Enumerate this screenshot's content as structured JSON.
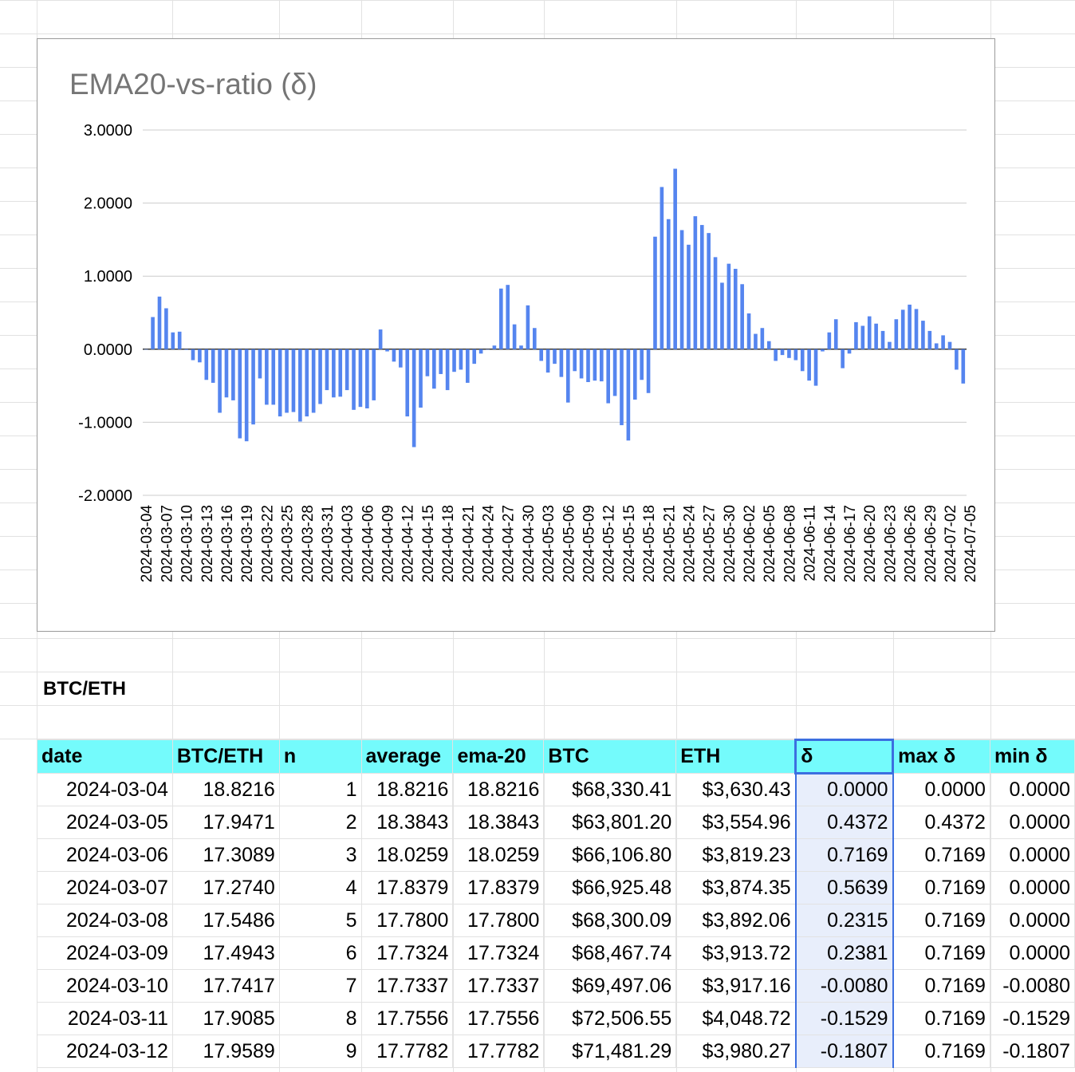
{
  "chart": {
    "title": "EMA20-vs-ratio (δ)",
    "bar_color": "#5585ef",
    "y_ticks": [
      "3.0000",
      "2.0000",
      "1.0000",
      "0.0000",
      "-1.0000",
      "-2.0000"
    ]
  },
  "chart_data": {
    "type": "bar",
    "title": "EMA20-vs-ratio (δ)",
    "xlabel": "",
    "ylabel": "",
    "ylim": [
      -2,
      3
    ],
    "grid": true,
    "x_tick_labels": [
      "2024-03-04",
      "2024-03-07",
      "2024-03-10",
      "2024-03-13",
      "2024-03-16",
      "2024-03-19",
      "2024-03-22",
      "2024-03-25",
      "2024-03-28",
      "2024-03-31",
      "2024-04-03",
      "2024-04-06",
      "2024-04-09",
      "2024-04-12",
      "2024-04-15",
      "2024-04-18",
      "2024-04-21",
      "2024-04-24",
      "2024-04-27",
      "2024-04-30",
      "2024-05-03",
      "2024-05-06",
      "2024-05-09",
      "2024-05-12",
      "2024-05-15",
      "2024-05-18",
      "2024-05-21",
      "2024-05-24",
      "2024-05-27",
      "2024-05-30",
      "2024-06-02",
      "2024-06-05",
      "2024-06-08",
      "2024-06-11",
      "2024-06-14",
      "2024-06-17",
      "2024-06-20",
      "2024-06-23",
      "2024-06-26",
      "2024-06-29",
      "2024-07-02",
      "2024-07-05"
    ],
    "start_date": "2024-03-04",
    "values": [
      0.0,
      0.44,
      0.72,
      0.56,
      0.23,
      0.24,
      -0.01,
      -0.15,
      -0.18,
      -0.42,
      -0.46,
      -0.87,
      -0.66,
      -0.7,
      -1.22,
      -1.26,
      -1.03,
      -0.4,
      -0.76,
      -0.76,
      -0.92,
      -0.87,
      -0.86,
      -0.99,
      -0.92,
      -0.87,
      -0.75,
      -0.56,
      -0.66,
      -0.65,
      -0.56,
      -0.83,
      -0.79,
      -0.81,
      -0.7,
      0.27,
      -0.03,
      -0.17,
      -0.25,
      -0.92,
      -1.34,
      -0.8,
      -0.37,
      -0.54,
      -0.34,
      -0.56,
      -0.31,
      -0.28,
      -0.46,
      -0.2,
      -0.06,
      0.0,
      0.05,
      0.83,
      0.88,
      0.34,
      0.05,
      0.6,
      0.29,
      -0.16,
      -0.32,
      -0.2,
      -0.38,
      -0.73,
      -0.3,
      -0.4,
      -0.45,
      -0.43,
      -0.44,
      -0.74,
      -0.64,
      -1.04,
      -1.25,
      -0.69,
      -0.42,
      -0.6,
      1.54,
      2.22,
      1.78,
      2.47,
      1.63,
      1.43,
      1.82,
      1.7,
      1.59,
      1.26,
      0.91,
      1.17,
      1.1,
      0.89,
      0.49,
      0.21,
      0.29,
      0.11,
      -0.16,
      -0.08,
      -0.12,
      -0.15,
      -0.3,
      -0.43,
      -0.5,
      -0.03,
      0.23,
      0.41,
      -0.26,
      -0.06,
      0.37,
      0.32,
      0.45,
      0.35,
      0.25,
      0.1,
      0.41,
      0.54,
      0.61,
      0.55,
      0.39,
      0.25,
      0.08,
      0.19,
      0.1,
      -0.28,
      -0.47
    ]
  },
  "sheet": {
    "section_label": "BTC/ETH",
    "headers": [
      "date",
      "BTC/ETH",
      "n",
      "average",
      "ema-20",
      "BTC",
      "ETH",
      "δ",
      "max δ",
      "min δ"
    ],
    "rows": [
      [
        "2024-03-04",
        "18.8216",
        "1",
        "18.8216",
        "18.8216",
        "$68,330.41",
        "$3,630.43",
        "0.0000",
        "0.0000",
        "0.0000"
      ],
      [
        "2024-03-05",
        "17.9471",
        "2",
        "18.3843",
        "18.3843",
        "$63,801.20",
        "$3,554.96",
        "0.4372",
        "0.4372",
        "0.0000"
      ],
      [
        "2024-03-06",
        "17.3089",
        "3",
        "18.0259",
        "18.0259",
        "$66,106.80",
        "$3,819.23",
        "0.7169",
        "0.7169",
        "0.0000"
      ],
      [
        "2024-03-07",
        "17.2740",
        "4",
        "17.8379",
        "17.8379",
        "$66,925.48",
        "$3,874.35",
        "0.5639",
        "0.7169",
        "0.0000"
      ],
      [
        "2024-03-08",
        "17.5486",
        "5",
        "17.7800",
        "17.7800",
        "$68,300.09",
        "$3,892.06",
        "0.2315",
        "0.7169",
        "0.0000"
      ],
      [
        "2024-03-09",
        "17.4943",
        "6",
        "17.7324",
        "17.7324",
        "$68,467.74",
        "$3,913.72",
        "0.2381",
        "0.7169",
        "0.0000"
      ],
      [
        "2024-03-10",
        "17.7417",
        "7",
        "17.7337",
        "17.7337",
        "$69,497.06",
        "$3,917.16",
        "-0.0080",
        "0.7169",
        "-0.0080"
      ],
      [
        "2024-03-11",
        "17.9085",
        "8",
        "17.7556",
        "17.7556",
        "$72,506.55",
        "$4,048.72",
        "-0.1529",
        "0.7169",
        "-0.1529"
      ],
      [
        "2024-03-12",
        "17.9589",
        "9",
        "17.7782",
        "17.7782",
        "$71,481.29",
        "$3,980.27",
        "-0.1807",
        "0.7169",
        "-0.1807"
      ]
    ]
  }
}
